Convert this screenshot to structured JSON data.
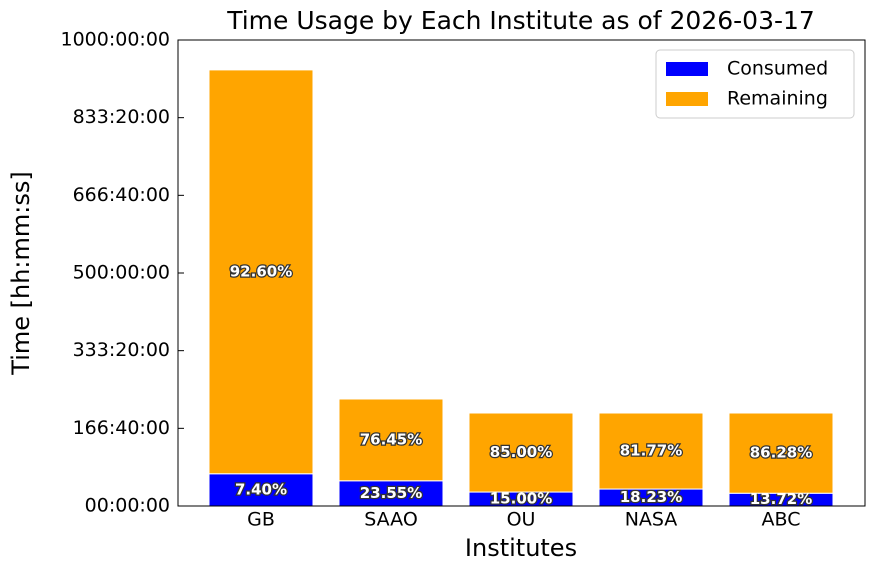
{
  "chart_data": {
    "type": "stacked-bar",
    "title": "Time Usage by Each Institute as of 2026-03-17",
    "x_label": "Institutes",
    "y_label": "Time [hh:mm:ss]",
    "categories": [
      "GB",
      "SAAO",
      "OU",
      "NASA",
      "ABC"
    ],
    "series": [
      {
        "name": "Consumed",
        "color": "#0000ff",
        "values": [
          249000,
          194700,
          107800,
          131000,
          98600
        ],
        "value_labels": [
          "7.40%",
          "23.55%",
          "15.00%",
          "18.23%",
          "13.72%"
        ]
      },
      {
        "name": "Remaining",
        "color": "#ffa500",
        "values": [
          3120000,
          632000,
          610600,
          587400,
          619800
        ],
        "value_labels": [
          "92.60%",
          "76.45%",
          "85.00%",
          "81.77%",
          "86.28%"
        ]
      }
    ],
    "ylim": [
      0,
      3600000
    ],
    "yticks": [
      {
        "value": 0,
        "label": "00:00:00"
      },
      {
        "value": 600000,
        "label": "166:40:00"
      },
      {
        "value": 1200000,
        "label": "333:20:00"
      },
      {
        "value": 1800000,
        "label": "500:00:00"
      },
      {
        "value": 2400000,
        "label": "666:40:00"
      },
      {
        "value": 3000000,
        "label": "833:20:00"
      },
      {
        "value": 3600000,
        "label": "1000:00:00"
      }
    ],
    "legend": "upper right"
  }
}
